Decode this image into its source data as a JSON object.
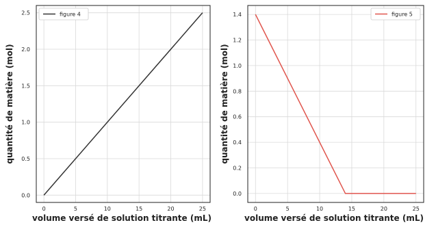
{
  "chart_data": [
    {
      "type": "line",
      "xlabel": "volume versé de solution titrante (mL)",
      "ylabel": "quantité de matière (mol)",
      "xlim": [
        -1.2,
        26.2
      ],
      "ylim": [
        -0.1,
        2.6
      ],
      "xticks": [
        "0",
        "5",
        "10",
        "15",
        "20",
        "25"
      ],
      "yticks": [
        "0.0",
        "0.5",
        "1.0",
        "1.5",
        "2.0",
        "2.5"
      ],
      "grid": true,
      "legend_position": "top-left",
      "series": [
        {
          "name": "figure 4",
          "color": "#333333",
          "x": [
            0,
            25
          ],
          "y": [
            0.0,
            2.5
          ]
        }
      ]
    },
    {
      "type": "line",
      "xlabel": "volume versé de solution titrante (mL)",
      "ylabel": "quantité de matière (mol)",
      "xlim": [
        -1.2,
        26.2
      ],
      "ylim": [
        -0.07,
        1.47
      ],
      "xticks": [
        "0",
        "5",
        "10",
        "15",
        "20",
        "25"
      ],
      "yticks": [
        "0.0",
        "0.2",
        "0.4",
        "0.6",
        "0.8",
        "1.0",
        "1.2",
        "1.4"
      ],
      "grid": true,
      "legend_position": "top-right",
      "series": [
        {
          "name": "figure 5",
          "color": "#e0554d",
          "x": [
            0,
            14,
            25
          ],
          "y": [
            1.4,
            0.0,
            0.0
          ]
        }
      ]
    }
  ]
}
